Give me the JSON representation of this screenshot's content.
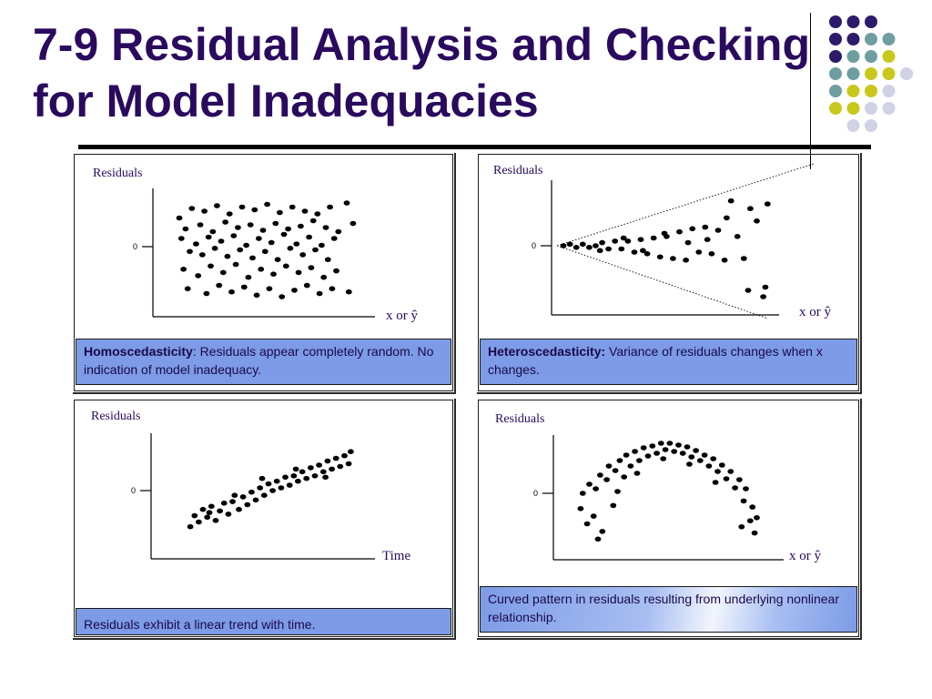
{
  "title": {
    "line1": "7-9  Residual Analysis and Checking",
    "line2": "for Model Inadequacies"
  },
  "decoration_colors": {
    "purple": "#2e1a6b",
    "teal": "#6f9ea0",
    "olive": "#c8c81c",
    "lavender": "#d2d2e6"
  },
  "chart_data": [
    {
      "type": "scatter",
      "pattern": "homoscedastic random band around zero",
      "ylabel": "Residuals",
      "xlabel": "x or ŷ",
      "ytick": "0",
      "x_range": [
        0,
        10
      ],
      "y_range": [
        -4,
        4
      ],
      "caption_bold": "Homoscedasticity",
      "caption_text": ": Residuals appear completely random.  No indication of model inadequacy.",
      "points": [
        [
          1.0,
          2.1
        ],
        [
          1.6,
          2.8
        ],
        [
          2.2,
          2.6
        ],
        [
          2.8,
          3.0
        ],
        [
          3.4,
          2.4
        ],
        [
          4.0,
          2.9
        ],
        [
          4.6,
          2.7
        ],
        [
          5.2,
          3.1
        ],
        [
          5.8,
          2.5
        ],
        [
          6.4,
          2.9
        ],
        [
          7.0,
          2.6
        ],
        [
          7.6,
          2.4
        ],
        [
          8.2,
          2.9
        ],
        [
          9.0,
          3.2
        ],
        [
          1.3,
          1.3
        ],
        [
          2.0,
          1.6
        ],
        [
          2.6,
          1.1
        ],
        [
          3.2,
          1.8
        ],
        [
          3.8,
          1.4
        ],
        [
          4.4,
          1.6
        ],
        [
          5.0,
          1.2
        ],
        [
          5.6,
          1.7
        ],
        [
          6.2,
          1.3
        ],
        [
          6.8,
          1.5
        ],
        [
          7.4,
          1.9
        ],
        [
          8.0,
          1.4
        ],
        [
          8.6,
          1.1
        ],
        [
          9.3,
          1.7
        ],
        [
          1.1,
          0.6
        ],
        [
          1.8,
          0.2
        ],
        [
          2.4,
          0.7
        ],
        [
          3.0,
          0.4
        ],
        [
          3.6,
          0.8
        ],
        [
          4.2,
          0.1
        ],
        [
          4.8,
          0.6
        ],
        [
          5.4,
          0.3
        ],
        [
          6.0,
          0.9
        ],
        [
          6.6,
          0.2
        ],
        [
          7.2,
          0.7
        ],
        [
          7.8,
          0.1
        ],
        [
          8.4,
          0.6
        ],
        [
          1.5,
          -0.3
        ],
        [
          2.1,
          -0.5
        ],
        [
          2.7,
          -0.1
        ],
        [
          3.3,
          -0.6
        ],
        [
          3.9,
          -0.2
        ],
        [
          4.5,
          -0.7
        ],
        [
          5.1,
          -0.3
        ],
        [
          5.7,
          -0.8
        ],
        [
          6.3,
          -0.1
        ],
        [
          6.9,
          -0.5
        ],
        [
          7.5,
          -0.2
        ],
        [
          8.1,
          -0.8
        ],
        [
          1.2,
          -1.4
        ],
        [
          1.9,
          -1.8
        ],
        [
          2.5,
          -1.2
        ],
        [
          3.1,
          -1.6
        ],
        [
          3.7,
          -1.1
        ],
        [
          4.3,
          -1.9
        ],
        [
          4.9,
          -1.4
        ],
        [
          5.5,
          -1.7
        ],
        [
          6.1,
          -1.2
        ],
        [
          6.7,
          -1.6
        ],
        [
          7.3,
          -1.3
        ],
        [
          7.9,
          -1.9
        ],
        [
          8.5,
          -1.5
        ],
        [
          1.4,
          -2.6
        ],
        [
          2.3,
          -2.9
        ],
        [
          2.9,
          -2.4
        ],
        [
          3.5,
          -2.8
        ],
        [
          4.1,
          -2.5
        ],
        [
          4.7,
          -3.0
        ],
        [
          5.3,
          -2.6
        ],
        [
          5.9,
          -3.1
        ],
        [
          6.5,
          -2.7
        ],
        [
          7.1,
          -2.4
        ],
        [
          7.7,
          -2.9
        ],
        [
          8.3,
          -2.6
        ],
        [
          9.1,
          -2.8
        ]
      ]
    },
    {
      "type": "scatter",
      "pattern": "heteroscedastic funnel widening with x",
      "ylabel": "Residuals",
      "xlabel": "x or ŷ",
      "ytick": "0",
      "x_range": [
        0,
        10
      ],
      "y_range": [
        -4,
        4
      ],
      "caption_bold": "Heteroscedasticity:",
      "caption_text": " Variance of residuals changes when x changes.",
      "points": [
        [
          0.3,
          0.0
        ],
        [
          0.6,
          0.1
        ],
        [
          0.9,
          -0.1
        ],
        [
          1.2,
          0.1
        ],
        [
          1.5,
          -0.1
        ],
        [
          1.8,
          0.0
        ],
        [
          2.1,
          0.2
        ],
        [
          2.4,
          -0.2
        ],
        [
          2.7,
          0.3
        ],
        [
          3.0,
          -0.2
        ],
        [
          3.3,
          0.3
        ],
        [
          3.6,
          -0.4
        ],
        [
          3.9,
          0.4
        ],
        [
          4.2,
          -0.5
        ],
        [
          4.5,
          0.5
        ],
        [
          4.8,
          -0.7
        ],
        [
          5.1,
          0.6
        ],
        [
          5.4,
          -0.8
        ],
        [
          5.7,
          0.9
        ],
        [
          6.0,
          -0.9
        ],
        [
          6.3,
          1.1
        ],
        [
          6.6,
          -0.4
        ],
        [
          6.9,
          1.2
        ],
        [
          7.2,
          -0.5
        ],
        [
          7.5,
          1.0
        ],
        [
          7.8,
          -0.9
        ],
        [
          8.1,
          2.9
        ],
        [
          8.4,
          0.6
        ],
        [
          8.7,
          -0.8
        ],
        [
          9.0,
          2.4
        ],
        [
          9.3,
          1.6
        ],
        [
          9.6,
          -3.2
        ],
        [
          9.8,
          2.7
        ],
        [
          2.0,
          -0.3
        ],
        [
          3.1,
          0.5
        ],
        [
          4.0,
          -0.3
        ],
        [
          5.0,
          0.8
        ],
        [
          6.1,
          0.2
        ],
        [
          7.0,
          0.4
        ],
        [
          7.9,
          1.8
        ],
        [
          8.9,
          -2.8
        ],
        [
          9.7,
          -2.6
        ]
      ]
    },
    {
      "type": "scatter",
      "pattern": "linear trend with time",
      "ylabel": "Residuals",
      "xlabel": "Time",
      "ytick": "0",
      "x_range": [
        0,
        10
      ],
      "y_range": [
        -4,
        4
      ],
      "caption_text": "Residuals exhibit a linear trend with time.",
      "points": [
        [
          1.6,
          -2.3
        ],
        [
          1.8,
          -1.6
        ],
        [
          2.0,
          -2.0
        ],
        [
          2.2,
          -1.2
        ],
        [
          2.4,
          -1.7
        ],
        [
          2.6,
          -1.0
        ],
        [
          2.8,
          -1.9
        ],
        [
          3.0,
          -1.3
        ],
        [
          3.2,
          -0.8
        ],
        [
          3.4,
          -1.5
        ],
        [
          3.6,
          -0.7
        ],
        [
          3.9,
          -1.2
        ],
        [
          4.1,
          -0.4
        ],
        [
          4.3,
          -0.9
        ],
        [
          4.5,
          -0.1
        ],
        [
          4.7,
          -0.6
        ],
        [
          4.9,
          0.2
        ],
        [
          5.1,
          -0.3
        ],
        [
          5.3,
          0.5
        ],
        [
          5.5,
          0.0
        ],
        [
          5.7,
          0.7
        ],
        [
          5.9,
          0.2
        ],
        [
          6.1,
          1.0
        ],
        [
          6.3,
          0.4
        ],
        [
          6.5,
          1.1
        ],
        [
          6.7,
          0.7
        ],
        [
          6.9,
          1.4
        ],
        [
          7.1,
          0.9
        ],
        [
          7.3,
          1.7
        ],
        [
          7.5,
          1.1
        ],
        [
          7.7,
          1.9
        ],
        [
          7.9,
          1.4
        ],
        [
          8.1,
          2.2
        ],
        [
          8.3,
          1.6
        ],
        [
          8.5,
          2.4
        ],
        [
          8.7,
          1.8
        ],
        [
          8.9,
          2.6
        ],
        [
          9.1,
          2.0
        ],
        [
          9.2,
          2.9
        ],
        [
          2.5,
          -1.4
        ],
        [
          3.7,
          -0.3
        ],
        [
          5.0,
          0.9
        ],
        [
          6.6,
          1.6
        ],
        [
          8.0,
          1.0
        ]
      ]
    },
    {
      "type": "scatter",
      "pattern": "curved inverted-U pattern",
      "ylabel": "Residuals",
      "xlabel": "x or ŷ",
      "ytick": "0",
      "x_range": [
        0,
        10
      ],
      "y_range": [
        -4,
        6
      ],
      "caption_text": "Curved pattern in residuals resulting from underlying nonlinear relationship.",
      "points": [
        [
          1.0,
          -1.0
        ],
        [
          1.1,
          0.0
        ],
        [
          1.3,
          -2.0
        ],
        [
          1.4,
          1.0
        ],
        [
          1.6,
          -1.5
        ],
        [
          1.7,
          0.5
        ],
        [
          1.9,
          2.0
        ],
        [
          2.0,
          -2.5
        ],
        [
          2.2,
          1.5
        ],
        [
          2.3,
          3.0
        ],
        [
          2.5,
          -0.8
        ],
        [
          2.6,
          2.5
        ],
        [
          2.8,
          3.6
        ],
        [
          3.0,
          1.8
        ],
        [
          3.1,
          4.2
        ],
        [
          3.3,
          3.0
        ],
        [
          3.5,
          4.6
        ],
        [
          3.7,
          3.6
        ],
        [
          3.9,
          5.0
        ],
        [
          4.1,
          4.1
        ],
        [
          4.3,
          5.2
        ],
        [
          4.5,
          4.4
        ],
        [
          4.7,
          5.5
        ],
        [
          4.9,
          4.8
        ],
        [
          5.1,
          5.5
        ],
        [
          5.3,
          4.6
        ],
        [
          5.5,
          5.3
        ],
        [
          5.7,
          4.4
        ],
        [
          5.9,
          5.1
        ],
        [
          6.1,
          4.0
        ],
        [
          6.3,
          4.7
        ],
        [
          6.5,
          3.6
        ],
        [
          6.7,
          4.2
        ],
        [
          6.9,
          3.0
        ],
        [
          7.1,
          3.8
        ],
        [
          7.3,
          2.4
        ],
        [
          7.5,
          3.1
        ],
        [
          7.7,
          1.6
        ],
        [
          7.9,
          2.4
        ],
        [
          8.1,
          0.6
        ],
        [
          8.3,
          1.5
        ],
        [
          8.5,
          -0.5
        ],
        [
          8.6,
          0.5
        ],
        [
          8.8,
          -1.8
        ],
        [
          8.9,
          -0.9
        ],
        [
          9.0,
          -2.6
        ],
        [
          9.1,
          -1.6
        ],
        [
          2.7,
          0.2
        ],
        [
          3.6,
          2.2
        ],
        [
          4.8,
          3.8
        ],
        [
          6.0,
          3.2
        ],
        [
          7.2,
          1.2
        ],
        [
          8.4,
          -2.2
        ],
        [
          1.8,
          -3.0
        ]
      ]
    }
  ]
}
